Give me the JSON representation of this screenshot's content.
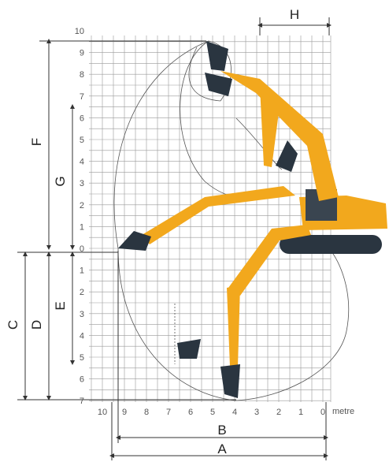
{
  "grid": {
    "y_labels": [
      "10",
      "9",
      "8",
      "7",
      "6",
      "5",
      "4",
      "3",
      "2",
      "1",
      "0",
      "1",
      "2",
      "3",
      "4",
      "5",
      "6",
      "7"
    ],
    "x_labels": [
      "10",
      "9",
      "8",
      "7",
      "6",
      "5",
      "4",
      "3",
      "2",
      "1",
      "0"
    ],
    "unit": "metre"
  },
  "dimensions": {
    "A": "A",
    "B": "B",
    "C": "C",
    "D": "D",
    "E": "E",
    "F": "F",
    "G": "G",
    "H": "H"
  }
}
